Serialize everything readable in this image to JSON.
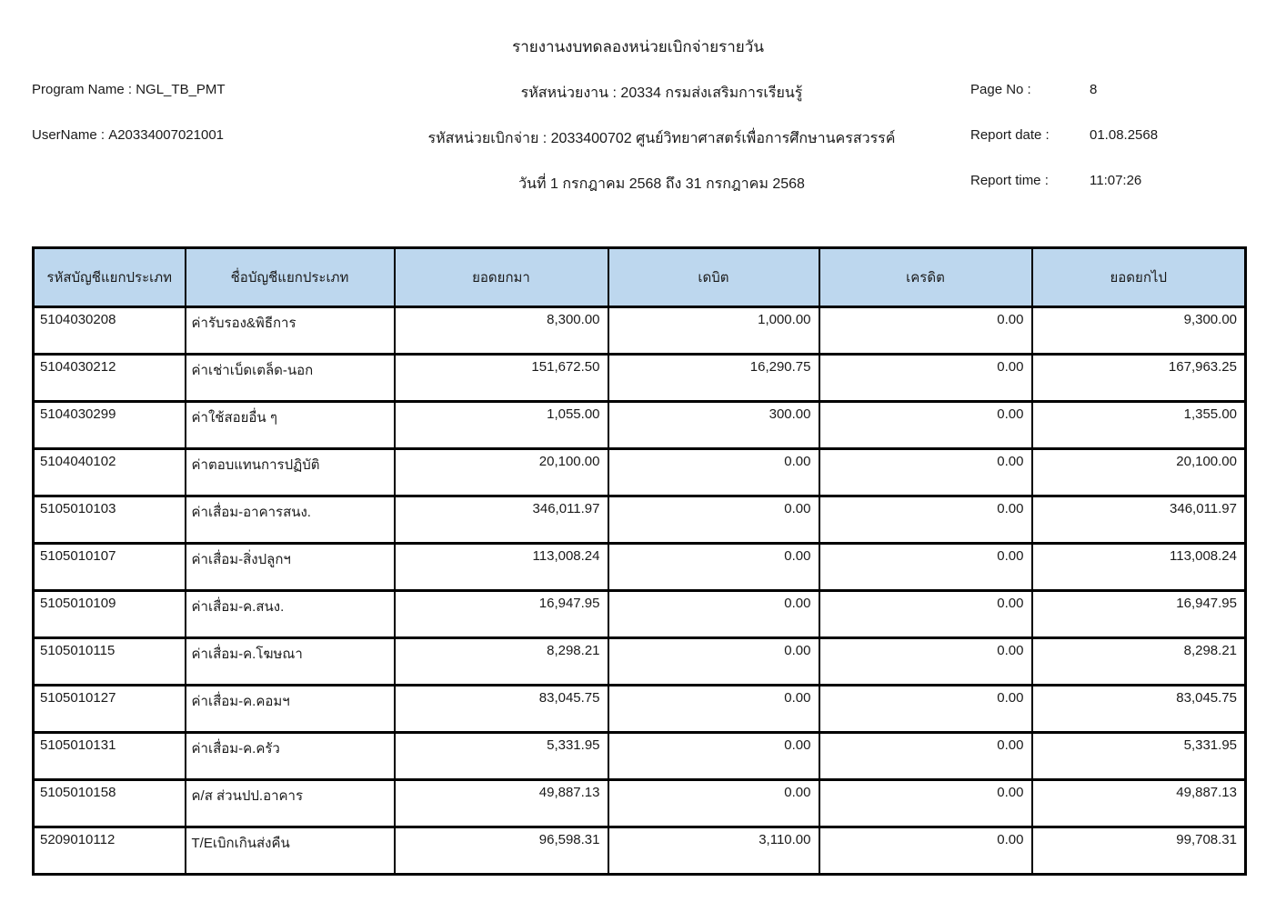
{
  "report": {
    "title": "รายงานงบทดลองหน่วยเบิกจ่ายรายวัน",
    "program_name_label": "Program Name :",
    "program_name_value": "NGL_TB_PMT",
    "username_label": "UserName :",
    "username_value": "A20334007021001",
    "agency_line": "รหัสหน่วยงาน : 20334 กรมส่งเสริมการเรียนรู้",
    "disbursement_unit_line": "รหัสหน่วยเบิกจ่าย : 2033400702 ศูนย์วิทยาศาสตร์เพื่อการศึกษานครสวรรค์",
    "date_range_line": "วันที่ 1 กรกฎาคม 2568 ถึง 31 กรกฎาคม 2568",
    "page_no_label": "Page No :",
    "page_no_value": "8",
    "report_date_label": "Report date :",
    "report_date_value": "01.08.2568",
    "report_time_label": "Report time :",
    "report_time_value": "11:07:26"
  },
  "table": {
    "header_bg": "#BDD7EE",
    "columns": [
      "รหัสบัญชีแยกประเภท",
      "ชื่อบัญชีแยกประเภท",
      "ยอดยกมา",
      "เดบิต",
      "เครดิต",
      "ยอดยกไป"
    ],
    "rows": [
      [
        "5104030208",
        "ค่ารับรอง&พิธีการ",
        "8,300.00",
        "1,000.00",
        "0.00",
        "9,300.00"
      ],
      [
        "5104030212",
        "ค่าเช่าเบ็ดเตล็ด-นอก",
        "151,672.50",
        "16,290.75",
        "0.00",
        "167,963.25"
      ],
      [
        "5104030299",
        "ค่าใช้สอยอื่น ๆ",
        "1,055.00",
        "300.00",
        "0.00",
        "1,355.00"
      ],
      [
        "5104040102",
        "ค่าตอบแทนการปฏิบัติ",
        "20,100.00",
        "0.00",
        "0.00",
        "20,100.00"
      ],
      [
        "5105010103",
        "ค่าเสื่อม-อาคารสนง.",
        "346,011.97",
        "0.00",
        "0.00",
        "346,011.97"
      ],
      [
        "5105010107",
        "ค่าเสื่อม-สิ่งปลูกฯ",
        "113,008.24",
        "0.00",
        "0.00",
        "113,008.24"
      ],
      [
        "5105010109",
        "ค่าเสื่อม-ค.สนง.",
        "16,947.95",
        "0.00",
        "0.00",
        "16,947.95"
      ],
      [
        "5105010115",
        "ค่าเสื่อม-ค.โฆษณา",
        "8,298.21",
        "0.00",
        "0.00",
        "8,298.21"
      ],
      [
        "5105010127",
        "ค่าเสื่อม-ค.คอมฯ",
        "83,045.75",
        "0.00",
        "0.00",
        "83,045.75"
      ],
      [
        "5105010131",
        "ค่าเสื่อม-ค.ครัว",
        "5,331.95",
        "0.00",
        "0.00",
        "5,331.95"
      ],
      [
        "5105010158",
        "ค/ส ส่วนปป.อาคาร",
        "49,887.13",
        "0.00",
        "0.00",
        "49,887.13"
      ],
      [
        "5209010112",
        "T/Eเบิกเกินส่งคืน",
        "96,598.31",
        "3,110.00",
        "0.00",
        "99,708.31"
      ]
    ]
  }
}
